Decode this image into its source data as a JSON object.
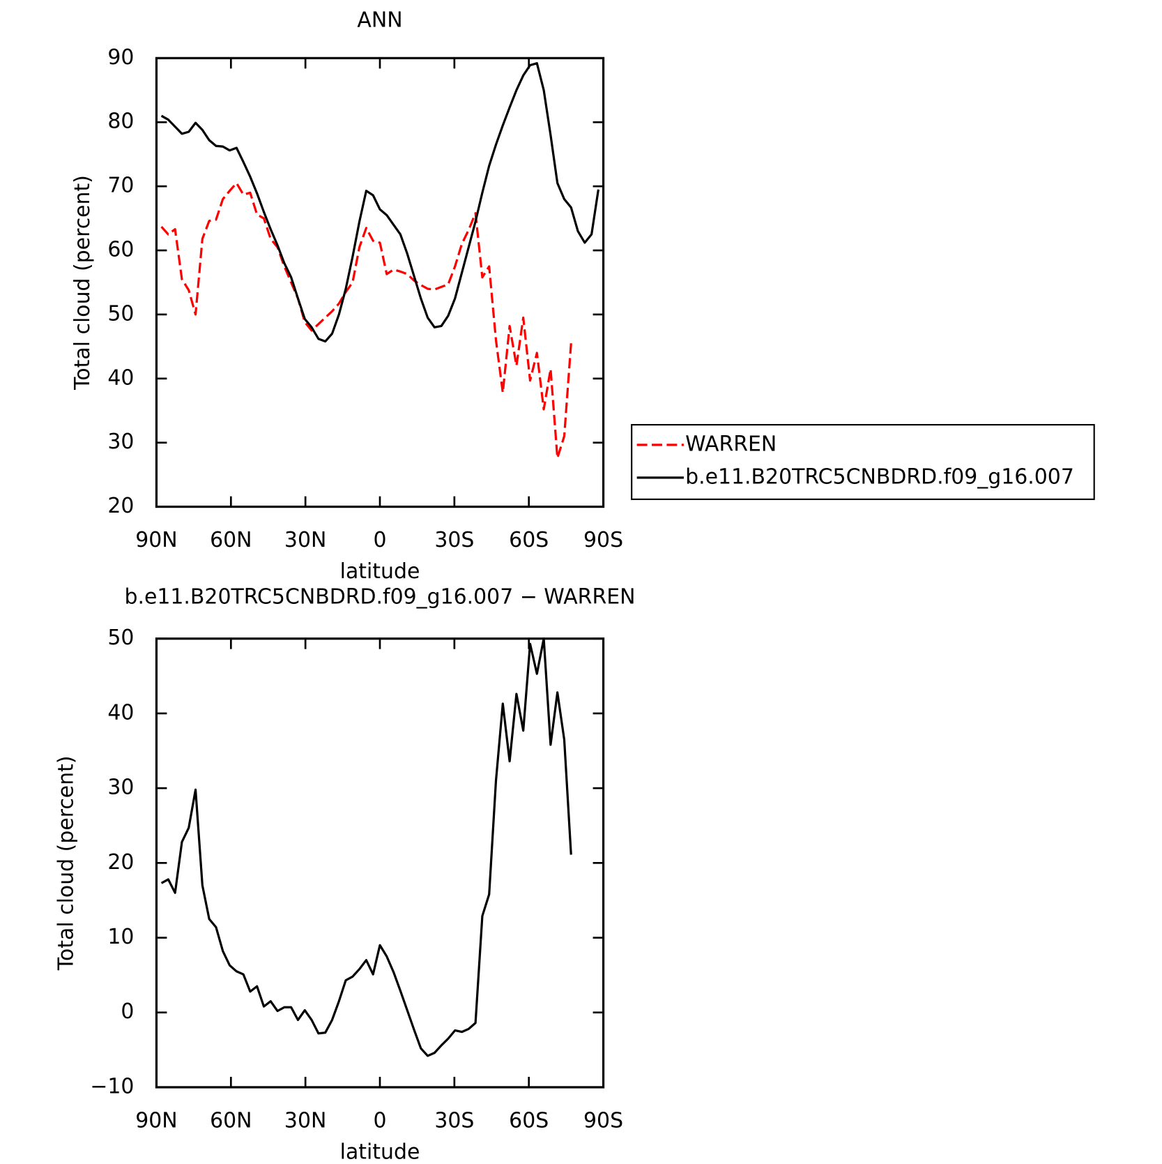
{
  "chart_data": [
    {
      "type": "line",
      "title": "ANN",
      "x_label": "latitude",
      "y_label": "Total cloud (percent)",
      "x": [
        88,
        85.25,
        82.5,
        79.75,
        77,
        74.25,
        71.5,
        68.75,
        66,
        63.25,
        60.5,
        57.75,
        55,
        52.25,
        49.5,
        46.75,
        44,
        41.25,
        38.5,
        35.75,
        33,
        30.25,
        27.5,
        24.75,
        22,
        19.25,
        16.5,
        13.75,
        11,
        8.25,
        5.5,
        2.75,
        0,
        -2.75,
        -5.5,
        -8.25,
        -11,
        -13.75,
        -16.5,
        -19.25,
        -22,
        -24.75,
        -27.5,
        -30.25,
        -33,
        -35.75,
        -38.5,
        -41.25,
        -44,
        -46.75,
        -49.5,
        -52.25,
        -55,
        -57.75,
        -60.5,
        -63.25,
        -66,
        -68.75,
        -71.5,
        -74.25,
        -77,
        -79.75,
        -82.5,
        -85.25,
        -88
      ],
      "series": [
        {
          "name": "WARREN",
          "color": "#ff0000",
          "line_style": "dashed",
          "values": [
            63.7,
            62.5,
            63.3,
            55.5,
            53.8,
            50.0,
            61.8,
            64.6,
            64.8,
            68.0,
            69.3,
            70.5,
            68.7,
            69.0,
            65.6,
            65.0,
            61.8,
            60.5,
            57.5,
            55.0,
            52.5,
            48.8,
            47.5,
            48.5,
            49.5,
            50.5,
            51.7,
            53.5,
            55.0,
            60.5,
            63.5,
            61.5,
            61.2,
            56.3,
            57.0,
            56.7,
            56.3,
            55.3,
            54.6,
            54.0,
            53.9,
            54.3,
            54.7,
            57.5,
            61.0,
            63.2,
            65.8,
            55.8,
            57.5,
            46.0,
            37.8,
            48.2,
            42.0,
            49.5,
            39.7,
            44.0,
            35.2,
            41.5,
            27.6,
            31.0,
            45.5,
            null,
            null,
            null,
            null
          ]
        },
        {
          "name": "b.e11.B20TRC5CNBDRD.f09_g16.007",
          "color": "#000000",
          "line_style": "solid",
          "values": [
            81,
            80.4,
            79.3,
            78.2,
            78.5,
            79.9,
            78.8,
            77.2,
            76.3,
            76.2,
            75.6,
            76.0,
            73.8,
            71.5,
            68.9,
            66.0,
            63.3,
            60.8,
            58.0,
            55.8,
            52.5,
            49.3,
            48.0,
            46.2,
            45.8,
            47.0,
            50.0,
            54.0,
            59.0,
            64.5,
            69.3,
            68.6,
            66.4,
            65.5,
            64.0,
            62.5,
            59.5,
            56.0,
            52.5,
            49.5,
            48.0,
            48.2,
            49.8,
            52.5,
            56.5,
            60.5,
            64.5,
            69.0,
            73.2,
            76.5,
            79.5,
            82.3,
            85.0,
            87.3,
            88.9,
            89.2,
            85.0,
            78.0,
            70.5,
            68.0,
            66.7,
            63.0,
            61.2,
            62.5,
            69.5
          ]
        }
      ],
      "xlim": [
        90,
        -90
      ],
      "xticks": [
        {
          "value": 90,
          "label": "90N"
        },
        {
          "value": 60,
          "label": "60N"
        },
        {
          "value": 30,
          "label": "30N"
        },
        0,
        {
          "value": -30,
          "label": "30S"
        },
        {
          "value": -60,
          "label": "60S"
        },
        {
          "value": -90,
          "label": "90S"
        }
      ],
      "ylim": [
        20,
        90
      ],
      "yticks": [
        20,
        30,
        40,
        50,
        60,
        70,
        80,
        90
      ],
      "legend": "right"
    },
    {
      "type": "line",
      "title": "b.e11.B20TRC5CNBDRD.f09_g16.007 − WARREN",
      "x_label": "latitude",
      "y_label": "Total cloud (percent)",
      "x": [
        88,
        85.25,
        82.5,
        79.75,
        77,
        74.25,
        71.5,
        68.75,
        66,
        63.25,
        60.5,
        57.75,
        55,
        52.25,
        49.5,
        46.75,
        44,
        41.25,
        38.5,
        35.75,
        33,
        30.25,
        27.5,
        24.75,
        22,
        19.25,
        16.5,
        13.75,
        11,
        8.25,
        5.5,
        2.75,
        0,
        -2.75,
        -5.5,
        -8.25,
        -11,
        -13.75,
        -16.5,
        -19.25,
        -22,
        -24.75,
        -27.5,
        -30.25,
        -33,
        -35.75,
        -38.5,
        -41.25,
        -44,
        -46.75,
        -49.5,
        -52.25,
        -55,
        -57.75,
        -60.5,
        -63.25,
        -66,
        -68.75,
        -71.5,
        -74.25,
        -77,
        -79.75,
        -82.5,
        -85.25,
        -88
      ],
      "series": [
        {
          "color": "#000000",
          "line_style": "solid",
          "values": [
            17.3,
            17.8,
            16.0,
            22.8,
            24.7,
            29.8,
            17.0,
            12.5,
            11.4,
            8.2,
            6.3,
            5.5,
            5.1,
            2.8,
            3.5,
            0.8,
            1.5,
            0.2,
            0.7,
            0.7,
            -1.0,
            0.3,
            -1.0,
            -2.8,
            -2.7,
            -1.0,
            1.5,
            4.3,
            4.8,
            5.8,
            7.0,
            5.1,
            9.0,
            7.5,
            5.4,
            2.9,
            0.3,
            -2.3,
            -4.8,
            -5.8,
            -5.4,
            -4.4,
            -3.5,
            -2.4,
            -2.6,
            -2.2,
            -1.4,
            12.9,
            15.8,
            31.0,
            41.3,
            33.6,
            42.6,
            37.7,
            49.3,
            45.3,
            50.0,
            35.8,
            42.8,
            36.5,
            21.1,
            null,
            null,
            null,
            null
          ]
        }
      ],
      "xlim": [
        90,
        -90
      ],
      "xticks": [
        {
          "value": 90,
          "label": "90N"
        },
        {
          "value": 60,
          "label": "60N"
        },
        {
          "value": 30,
          "label": "30N"
        },
        0,
        {
          "value": -30,
          "label": "30S"
        },
        {
          "value": -60,
          "label": "60S"
        },
        {
          "value": -90,
          "label": "90S"
        }
      ],
      "ylim": [
        -10,
        50
      ],
      "yticks": [
        {
          "value": -10,
          "label": "−10"
        },
        0,
        10,
        20,
        30,
        40,
        50
      ]
    }
  ]
}
